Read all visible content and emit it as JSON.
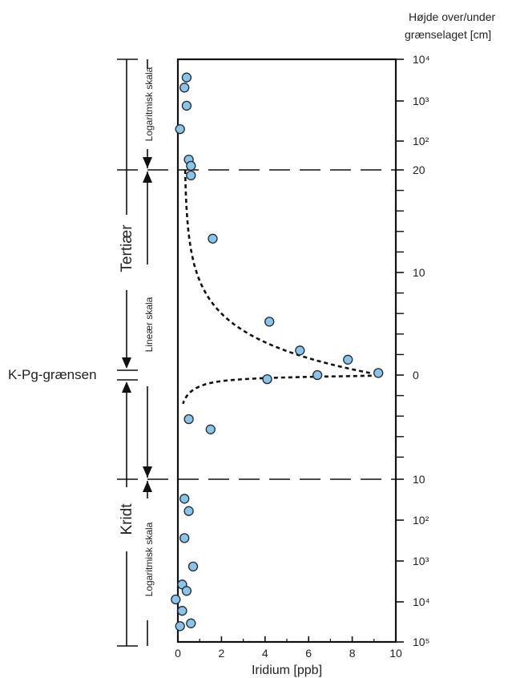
{
  "chart_data": {
    "type": "scatter",
    "xlabel": "Iridium  [ppb]",
    "ylabel": "Højde over/under grænselaget [cm]",
    "xlim": [
      0,
      10
    ],
    "x_ticks": [
      0,
      2,
      4,
      6,
      8,
      10
    ],
    "y_tick_labels": [
      "10⁴",
      "10³",
      "10²",
      "20",
      "10",
      "0",
      "10",
      "10²",
      "10³",
      "10⁴",
      "10⁵"
    ],
    "boundary_label": "K-Pg-grænsen",
    "periods": [
      {
        "name": "Tertiær",
        "position": "above"
      },
      {
        "name": "Kridt",
        "position": "below"
      }
    ],
    "scale_labels": {
      "upper": "Logaritmisk skala",
      "middle": "Lineær skala",
      "lower": "Logaritmisk skala"
    },
    "y_scale": "piecewise: log above +20 cm, linear between +20 and −10 cm, log below −10 cm",
    "linear_limits": [
      -10,
      20
    ],
    "trend_lines": "dashed",
    "series": [
      {
        "marker_color": "#8ec3e6",
        "points": [
          {
            "x": 0.4,
            "y": 13000
          },
          {
            "x": 0.3,
            "y": 6000
          },
          {
            "x": 0.4,
            "y": 1500
          },
          {
            "x": 0.1,
            "y": 250
          },
          {
            "x": 0.5,
            "y": 55
          },
          {
            "x": 0.6,
            "y": 45
          },
          {
            "x": 0.6,
            "y": 33
          },
          {
            "x": 1.6,
            "y": 13.3
          },
          {
            "x": 4.2,
            "y": 5.2
          },
          {
            "x": 5.6,
            "y": 2.4
          },
          {
            "x": 7.8,
            "y": 1.5
          },
          {
            "x": 9.2,
            "y": 0.2
          },
          {
            "x": 6.4,
            "y": 0
          },
          {
            "x": 4.1,
            "y": -0.4
          },
          {
            "x": 0.5,
            "y": -4.3
          },
          {
            "x": 1.5,
            "y": -5.3
          },
          {
            "x": 0.3,
            "y": -30
          },
          {
            "x": 0.5,
            "y": -60
          },
          {
            "x": 0.3,
            "y": -270
          },
          {
            "x": 0.7,
            "y": -1300
          },
          {
            "x": 0.2,
            "y": -3500
          },
          {
            "x": 0.4,
            "y": -5000
          },
          {
            "x": -0.1,
            "y": -8000
          },
          {
            "x": 0.2,
            "y": -15000
          },
          {
            "x": 0.6,
            "y": -30000
          },
          {
            "x": 0.1,
            "y": -35000
          }
        ]
      }
    ]
  }
}
